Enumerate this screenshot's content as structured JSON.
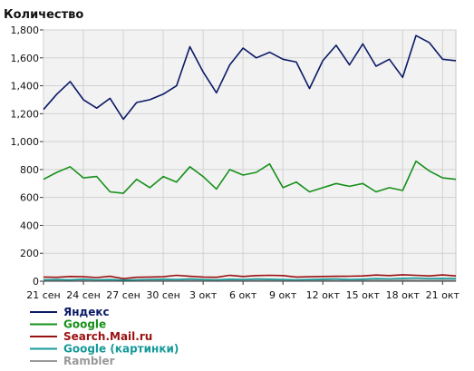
{
  "chart_data": {
    "type": "line",
    "title": "",
    "ylabel": "Количество",
    "xlabel": "",
    "ylim": [
      0,
      1800
    ],
    "y_ticks": [
      "0",
      "200",
      "400",
      "600",
      "800",
      "1,000",
      "1,200",
      "1,400",
      "1,600",
      "1,800"
    ],
    "x_ticks": [
      "21 сен",
      "24 сен",
      "27 сен",
      "30 сен",
      "3 окт",
      "6 окт",
      "9 окт",
      "12 окт",
      "15 окт",
      "18 окт",
      "21 окт"
    ],
    "grid": true,
    "legend_position": "bottom-left",
    "x": [
      "21 сен",
      "22 сен",
      "23 сен",
      "24 сен",
      "25 сен",
      "26 сен",
      "27 сен",
      "28 сен",
      "29 сен",
      "30 сен",
      "1 окт",
      "2 окт",
      "3 окт",
      "4 окт",
      "5 окт",
      "6 окт",
      "7 окт",
      "8 окт",
      "9 окт",
      "10 окт",
      "11 окт",
      "12 окт",
      "13 окт",
      "14 окт",
      "15 окт",
      "16 окт",
      "17 окт",
      "18 окт",
      "19 окт",
      "20 окт",
      "21 окт",
      "22 окт"
    ],
    "series": [
      {
        "name": "Яндекс",
        "color": "#0b1a66",
        "values": [
          1230,
          1340,
          1430,
          1300,
          1240,
          1310,
          1160,
          1280,
          1300,
          1340,
          1400,
          1680,
          1500,
          1350,
          1550,
          1670,
          1600,
          1640,
          1590,
          1570,
          1380,
          1580,
          1690,
          1550,
          1700,
          1540,
          1590,
          1460,
          1760,
          1710,
          1590,
          1580
        ]
      },
      {
        "name": "Google",
        "color": "#17901a",
        "values": [
          730,
          780,
          820,
          740,
          750,
          640,
          630,
          730,
          670,
          750,
          710,
          820,
          750,
          660,
          800,
          760,
          780,
          840,
          670,
          710,
          640,
          670,
          700,
          680,
          700,
          640,
          670,
          650,
          860,
          790,
          740,
          730
        ]
      },
      {
        "name": "Search.Mail.ru",
        "color": "#9b1010",
        "values": [
          30,
          28,
          34,
          32,
          26,
          35,
          18,
          28,
          30,
          32,
          42,
          35,
          30,
          28,
          42,
          34,
          40,
          42,
          40,
          30,
          32,
          34,
          35,
          36,
          38,
          44,
          40,
          46,
          42,
          38,
          45,
          38
        ]
      },
      {
        "name": "Google (картинки)",
        "color": "#169999",
        "values": [
          10,
          12,
          9,
          14,
          10,
          12,
          8,
          10,
          12,
          14,
          12,
          16,
          12,
          10,
          14,
          12,
          16,
          14,
          12,
          10,
          12,
          14,
          16,
          12,
          14,
          18,
          16,
          20,
          22,
          18,
          20,
          18
        ]
      },
      {
        "name": "Rambler",
        "color": "#999999",
        "values": [
          4,
          5,
          3,
          6,
          4,
          5,
          3,
          4,
          5,
          6,
          5,
          6,
          4,
          5,
          6,
          5,
          6,
          5,
          4,
          5,
          6,
          5,
          4,
          6,
          5,
          6,
          5,
          7,
          6,
          5,
          6,
          5
        ]
      }
    ]
  }
}
